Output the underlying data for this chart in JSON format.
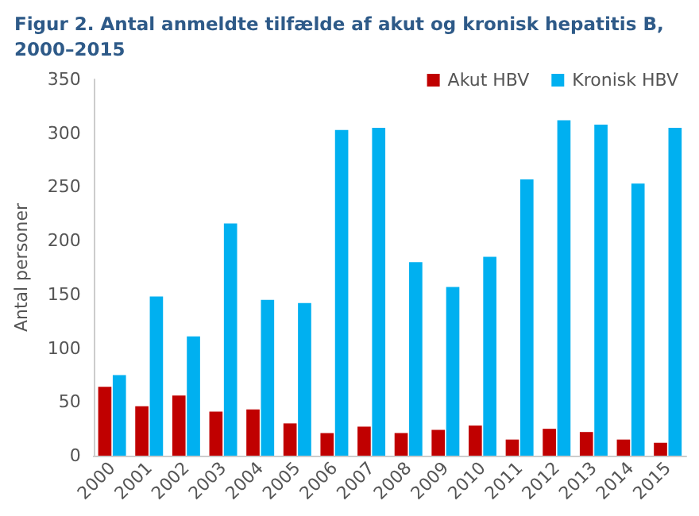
{
  "chart_data": {
    "type": "bar",
    "title": "Figur 2. Antal anmeldte tilfælde af akut og kronisk hepatitis B,\n2000–2015",
    "ylabel": "Antal personer",
    "categories": [
      "2000",
      "2001",
      "2002",
      "2003",
      "2004",
      "2005",
      "2006",
      "2007",
      "2008",
      "2009",
      "2010",
      "2011",
      "2012",
      "2013",
      "2014",
      "2015"
    ],
    "series": [
      {
        "name": "Akut HBV",
        "color": "#c00000",
        "values": [
          64,
          46,
          56,
          41,
          43,
          30,
          21,
          27,
          21,
          24,
          28,
          15,
          25,
          22,
          15,
          12
        ]
      },
      {
        "name": "Kronisk HBV",
        "color": "#00b0f0",
        "values": [
          75,
          148,
          111,
          216,
          145,
          142,
          303,
          305,
          180,
          157,
          185,
          257,
          312,
          308,
          253,
          305
        ]
      }
    ],
    "ylim": [
      0,
      350
    ],
    "yticks": [
      0,
      50,
      100,
      150,
      200,
      250,
      300,
      350
    ],
    "grid": false,
    "legend": "top right"
  }
}
